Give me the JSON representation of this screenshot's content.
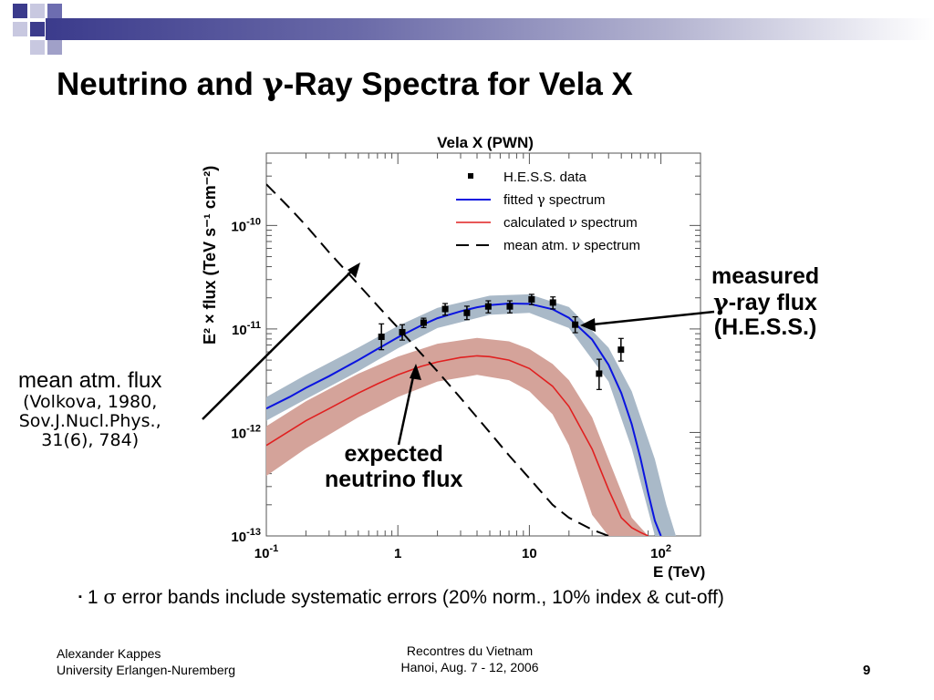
{
  "slide": {
    "title_prefix": "Neutrino and ",
    "title_greek": "γ",
    "title_suffix": "-Ray Spectra for Vela X"
  },
  "annotations": {
    "measured": {
      "line1": "measured",
      "line2_greek": "γ",
      "line2_text": "-ray flux",
      "line3": "(H.E.S.S.)"
    },
    "expected": {
      "line1": "expected",
      "line2": "neutrino flux"
    },
    "mean": {
      "line1": "mean atm. flux",
      "line2": "(Volkova, 1980,",
      "line3": "Sov.J.Nucl.Phys.,",
      "line4": "31(6), 784)"
    }
  },
  "note": {
    "bullet": "▪",
    "prefix": "1 ",
    "greek": "σ",
    "text": " error bands include systematic errors (20% norm., 10% index & cut-off)"
  },
  "footer": {
    "author": "Alexander Kappes",
    "affiliation": "University Erlangen-Nuremberg",
    "conference": "Recontres du Vietnam",
    "conference_date": "Hanoi, Aug. 7 - 12, 2006",
    "page": "9"
  },
  "colors": {
    "fitted": "#0a14e0",
    "calculated": "#e02020",
    "gamma_band": "#a9b9c8",
    "nu_band": "#d4a39a",
    "atm": "#000000"
  },
  "chart_data": {
    "type": "line",
    "title": "Vela X (PWN)",
    "xlabel": "E (TeV)",
    "ylabel": "E² × flux (TeV s⁻¹ cm⁻²)",
    "xscale": "log",
    "yscale": "log",
    "xlim": [
      0.1,
      200
    ],
    "ylim": [
      1e-13,
      5e-10
    ],
    "x_tick_labels": [
      {
        "value": 0.1,
        "base": "10",
        "exp": "-1"
      },
      {
        "value": 1,
        "base": "1",
        "exp": ""
      },
      {
        "value": 10,
        "base": "10",
        "exp": ""
      },
      {
        "value": 100,
        "base": "10",
        "exp": "2"
      }
    ],
    "y_tick_labels": [
      {
        "value": 1e-13,
        "base": "10",
        "exp": "-13"
      },
      {
        "value": 1e-12,
        "base": "10",
        "exp": "-12"
      },
      {
        "value": 1e-11,
        "base": "10",
        "exp": "-11"
      },
      {
        "value": 1e-10,
        "base": "10",
        "exp": "-10"
      }
    ],
    "legend": {
      "placement": "top-right",
      "entries": [
        {
          "style": "marker",
          "label": "H.E.S.S. data"
        },
        {
          "style": "blue-line",
          "label_prefix": "fitted ",
          "label_greek": "γ",
          "label_suffix": " spectrum"
        },
        {
          "style": "red-line",
          "label_prefix": "calculated ",
          "label_greek": "ν",
          "label_suffix": " spectrum"
        },
        {
          "style": "dashed-line",
          "label_prefix": "mean atm. ",
          "label_greek": "ν",
          "label_suffix": " spectrum"
        }
      ]
    },
    "series": [
      {
        "name": "H.E.S.S. data",
        "kind": "points",
        "points": [
          {
            "x": 0.75,
            "y": 8.4e-12,
            "lo": 6.3e-12,
            "hi": 1.12e-11
          },
          {
            "x": 1.08,
            "y": 9.3e-12,
            "lo": 7.8e-12,
            "hi": 1.1e-11
          },
          {
            "x": 1.57,
            "y": 1.15e-11,
            "lo": 1.03e-11,
            "hi": 1.27e-11
          },
          {
            "x": 2.29,
            "y": 1.56e-11,
            "lo": 1.36e-11,
            "hi": 1.76e-11
          },
          {
            "x": 3.35,
            "y": 1.43e-11,
            "lo": 1.23e-11,
            "hi": 1.66e-11
          },
          {
            "x": 4.87,
            "y": 1.65e-11,
            "lo": 1.43e-11,
            "hi": 1.87e-11
          },
          {
            "x": 7.1,
            "y": 1.65e-11,
            "lo": 1.43e-11,
            "hi": 1.87e-11
          },
          {
            "x": 10.4,
            "y": 1.93e-11,
            "lo": 1.72e-11,
            "hi": 2.16e-11
          },
          {
            "x": 15.1,
            "y": 1.8e-11,
            "lo": 1.56e-11,
            "hi": 2.04e-11
          },
          {
            "x": 22.3,
            "y": 1.1e-11,
            "lo": 9.2e-12,
            "hi": 1.31e-11
          },
          {
            "x": 33.9,
            "y": 3.7e-12,
            "lo": 2.6e-12,
            "hi": 5.1e-12
          },
          {
            "x": 49.7,
            "y": 6.3e-12,
            "lo": 4.9e-12,
            "hi": 8.1e-12
          }
        ]
      },
      {
        "name": "fitted γ spectrum",
        "kind": "line",
        "x": [
          0.1,
          0.15,
          0.2,
          0.3,
          0.5,
          0.7,
          1,
          1.5,
          2,
          3,
          4,
          5,
          7,
          10,
          15,
          20,
          30,
          40,
          50,
          60,
          70,
          80,
          90,
          100
        ],
        "y": [
          1.7e-12,
          2.2e-12,
          2.7e-12,
          3.5e-12,
          5e-12,
          6.4e-12,
          8.3e-12,
          1.08e-11,
          1.27e-11,
          1.48e-11,
          1.62e-11,
          1.7e-11,
          1.76e-11,
          1.75e-11,
          1.55e-11,
          1.28e-11,
          7.9e-12,
          4.5e-12,
          2.4e-12,
          1.2e-12,
          5.6e-13,
          2.6e-13,
          1.4e-13,
          1e-13
        ]
      },
      {
        "name": "fitted γ spectrum band",
        "kind": "band",
        "x": [
          0.1,
          0.2,
          0.5,
          1,
          2,
          5,
          10,
          20,
          40,
          60,
          90,
          110,
          130
        ],
        "y_low": [
          1.3e-12,
          2.1e-12,
          3.9e-12,
          6.5e-12,
          1.02e-11,
          1.37e-11,
          1.43e-11,
          1.02e-11,
          3.1e-12,
          7e-13,
          1e-13,
          1e-13,
          1e-13
        ],
        "y_high": [
          2.2e-12,
          3.6e-12,
          6.6e-12,
          1.07e-11,
          1.6e-11,
          2.1e-11,
          2.16e-11,
          1.63e-11,
          6.6e-12,
          2.5e-12,
          5.5e-13,
          2e-13,
          1e-13
        ]
      },
      {
        "name": "calculated ν spectrum",
        "kind": "line",
        "x": [
          0.1,
          0.2,
          0.3,
          0.5,
          0.7,
          1,
          1.5,
          2,
          3,
          4,
          5,
          7,
          10,
          15,
          20,
          30,
          40,
          50,
          60,
          70,
          80
        ],
        "y": [
          7.5e-13,
          1.3e-12,
          1.7e-12,
          2.4e-12,
          2.95e-12,
          3.6e-12,
          4.35e-12,
          4.8e-12,
          5.3e-12,
          5.5e-12,
          5.4e-12,
          5e-12,
          4.15e-12,
          2.8e-12,
          1.78e-12,
          6.9e-13,
          2.8e-13,
          1.5e-13,
          1.2e-13,
          1.08e-13,
          1e-13
        ]
      },
      {
        "name": "calculated ν spectrum band",
        "kind": "band",
        "x": [
          0.1,
          0.2,
          0.5,
          1,
          2,
          4,
          7,
          10,
          15,
          20,
          30,
          40,
          60,
          80,
          90
        ],
        "y_low": [
          3.8e-13,
          7e-13,
          1.4e-12,
          2.2e-12,
          3.1e-12,
          3.6e-12,
          3.2e-12,
          2.5e-12,
          1.5e-12,
          7.5e-13,
          1.6e-13,
          1e-13,
          1e-13,
          1e-13,
          1e-13
        ],
        "y_high": [
          1.15e-12,
          2e-12,
          3.7e-12,
          5.4e-12,
          7.2e-12,
          8.2e-12,
          7.6e-12,
          6.4e-12,
          4.6e-12,
          3.2e-12,
          1.4e-12,
          5.5e-13,
          1.5e-13,
          1e-13,
          1e-13
        ]
      },
      {
        "name": "mean atm. ν spectrum",
        "kind": "dashed-line",
        "x": [
          0.1,
          0.15,
          0.2,
          0.3,
          0.5,
          0.7,
          1,
          1.5,
          2,
          3,
          5,
          7,
          10,
          15,
          20,
          30,
          40
        ],
        "y": [
          2.5e-10,
          1.48e-10,
          1e-10,
          5.5e-11,
          2.7e-11,
          1.68e-11,
          1.03e-11,
          5.8e-12,
          3.9e-12,
          2.15e-12,
          1e-12,
          6e-13,
          3.6e-13,
          2e-13,
          1.5e-13,
          1.15e-13,
          1e-13
        ]
      }
    ]
  }
}
